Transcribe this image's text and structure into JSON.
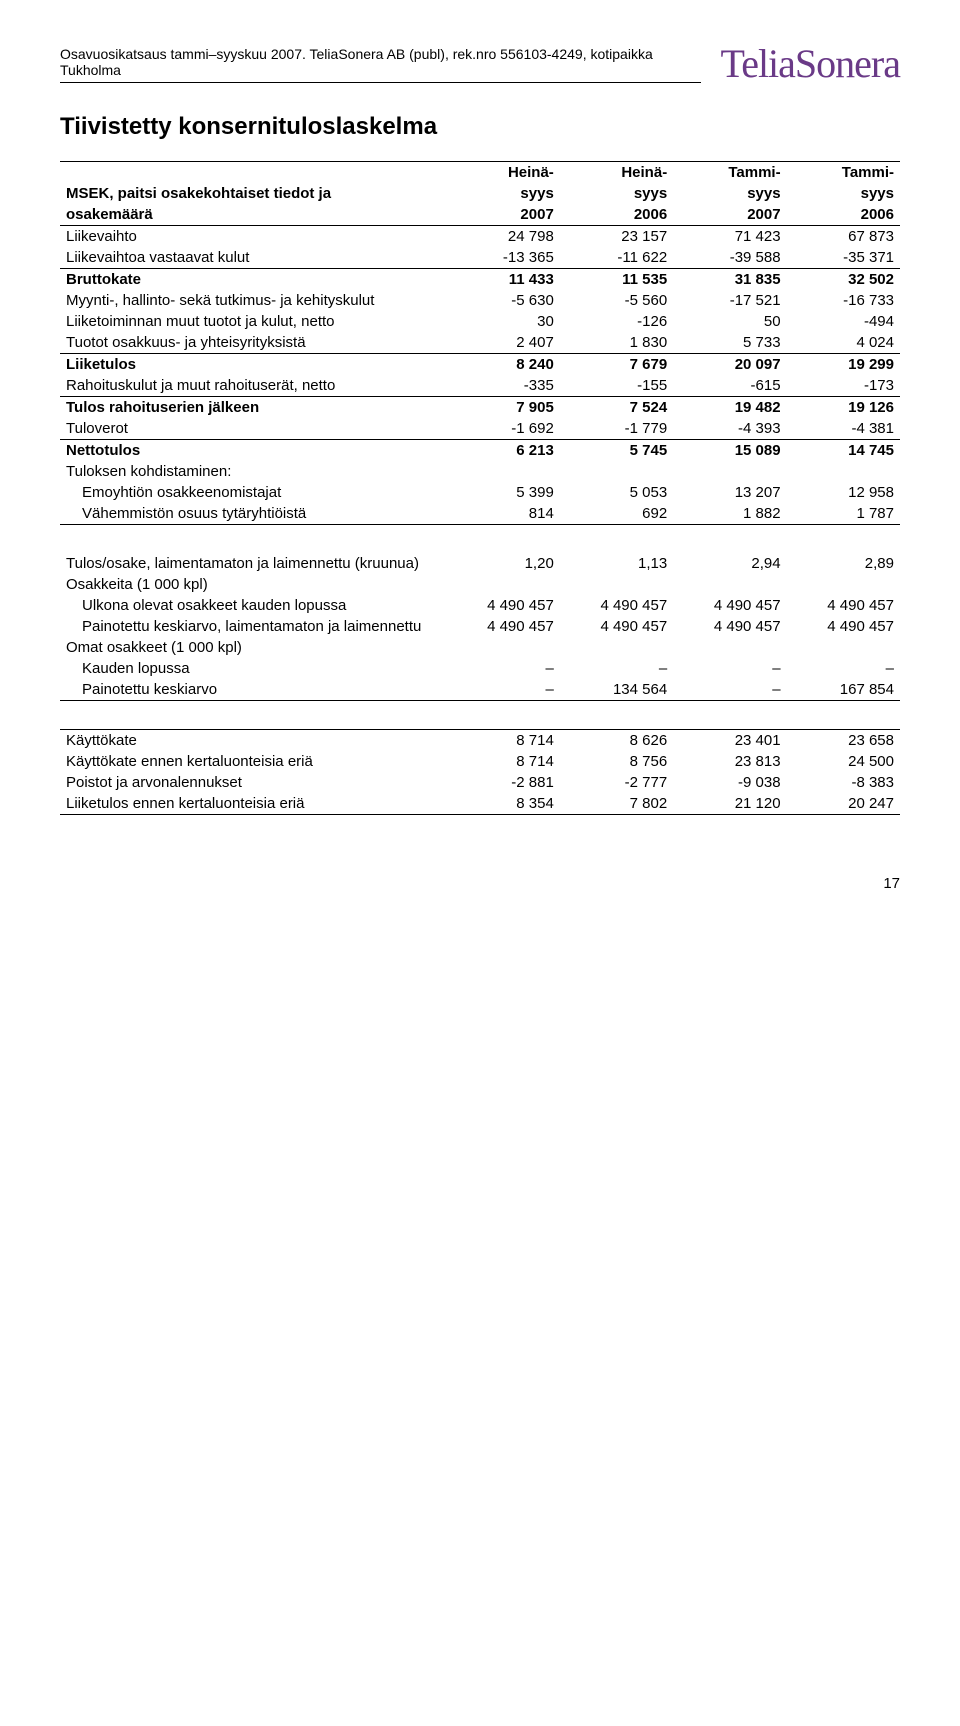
{
  "header": {
    "line": "Osavuosikatsaus tammi–syyskuu 2007. TeliaSonera AB (publ), rek.nro 556103-4249, kotipaikka Tukholma",
    "logo": "TeliaSonera",
    "logo_color": "#6a3a87"
  },
  "title": "Tiivistetty konsernituloslaskelma",
  "headers": {
    "r1c1": "",
    "r1c2": "Heinä-",
    "r1c3": "Heinä-",
    "r1c4": "Tammi-",
    "r1c5": "Tammi-",
    "r2c1": "MSEK, paitsi osakekohtaiset tiedot ja",
    "r2c2": "syys",
    "r2c3": "syys",
    "r2c4": "syys",
    "r2c5": "syys",
    "r3c1": "osakemäärä",
    "r3c2": "2007",
    "r3c3": "2006",
    "r3c4": "2007",
    "r3c5": "2006"
  },
  "rows": [
    {
      "label": "Liikevaihto",
      "c1": "24 798",
      "c2": "23 157",
      "c3": "71 423",
      "c4": "67 873",
      "bold": false,
      "indent": false
    },
    {
      "label": "Liikevaihtoa vastaavat kulut",
      "c1": "-13 365",
      "c2": "-11 622",
      "c3": "-39 588",
      "c4": "-35 371",
      "bold": false,
      "indent": false,
      "bottomBorder": true
    },
    {
      "label": "Bruttokate",
      "c1": "11 433",
      "c2": "11 535",
      "c3": "31 835",
      "c4": "32 502",
      "bold": true,
      "indent": false
    },
    {
      "label": "Myynti-, hallinto- sekä tutkimus- ja kehityskulut",
      "c1": "-5 630",
      "c2": "-5 560",
      "c3": "-17 521",
      "c4": "-16 733",
      "bold": false,
      "indent": false
    },
    {
      "label": "Liiketoiminnan muut tuotot ja kulut, netto",
      "c1": "30",
      "c2": "-126",
      "c3": "50",
      "c4": "-494",
      "bold": false,
      "indent": false
    },
    {
      "label": "Tuotot osakkuus- ja yhteisyrityksistä",
      "c1": "2 407",
      "c2": "1 830",
      "c3": "5 733",
      "c4": "4 024",
      "bold": false,
      "indent": false,
      "bottomBorder": true
    },
    {
      "label": "Liiketulos",
      "c1": "8 240",
      "c2": "7 679",
      "c3": "20 097",
      "c4": "19 299",
      "bold": true,
      "indent": false
    },
    {
      "label": "Rahoituskulut ja muut rahoituserät, netto",
      "c1": "-335",
      "c2": "-155",
      "c3": "-615",
      "c4": "-173",
      "bold": false,
      "indent": false,
      "bottomBorder": true
    },
    {
      "label": "Tulos rahoituserien jälkeen",
      "c1": "7 905",
      "c2": "7 524",
      "c3": "19 482",
      "c4": "19 126",
      "bold": true,
      "indent": false
    },
    {
      "label": "Tuloverot",
      "c1": "-1 692",
      "c2": "-1 779",
      "c3": "-4 393",
      "c4": "-4 381",
      "bold": false,
      "indent": false,
      "bottomBorder": true
    },
    {
      "label": "Nettotulos",
      "c1": "6 213",
      "c2": "5 745",
      "c3": "15 089",
      "c4": "14 745",
      "bold": true,
      "indent": false
    },
    {
      "label": "Tuloksen kohdistaminen:",
      "c1": "",
      "c2": "",
      "c3": "",
      "c4": "",
      "bold": false,
      "indent": false
    },
    {
      "label": "Emoyhtiön osakkeenomistajat",
      "c1": "5 399",
      "c2": "5 053",
      "c3": "13 207",
      "c4": "12 958",
      "bold": false,
      "indent": true
    },
    {
      "label": "Vähemmistön osuus tytäryhtiöistä",
      "c1": "814",
      "c2": "692",
      "c3": "1 882",
      "c4": "1 787",
      "bold": false,
      "indent": true,
      "bottomBorder": true
    }
  ],
  "share_rows": [
    {
      "label": "Tulos/osake, laimentamaton ja laimennettu (kruunua)",
      "c1": "1,20",
      "c2": "1,13",
      "c3": "2,94",
      "c4": "2,89",
      "bold": false,
      "indent": false
    },
    {
      "label": "Osakkeita (1 000 kpl)",
      "c1": "",
      "c2": "",
      "c3": "",
      "c4": "",
      "bold": false,
      "indent": false
    },
    {
      "label": "Ulkona olevat osakkeet kauden lopussa",
      "c1": "4 490 457",
      "c2": "4 490 457",
      "c3": "4 490 457",
      "c4": "4 490 457",
      "bold": false,
      "indent": true
    },
    {
      "label": "Painotettu keskiarvo, laimentamaton ja laimennettu",
      "c1": "4 490 457",
      "c2": "4 490 457",
      "c3": "4 490 457",
      "c4": "4 490 457",
      "bold": false,
      "indent": true
    },
    {
      "label": "Omat osakkeet (1 000 kpl)",
      "c1": "",
      "c2": "",
      "c3": "",
      "c4": "",
      "bold": false,
      "indent": false
    },
    {
      "label": "Kauden lopussa",
      "c1": "–",
      "c2": "–",
      "c3": "–",
      "c4": "–",
      "bold": false,
      "indent": true
    },
    {
      "label": "Painotettu keskiarvo",
      "c1": "–",
      "c2": "134 564",
      "c3": "–",
      "c4": "167 854",
      "bold": false,
      "indent": true,
      "bottomBorder": true
    }
  ],
  "footer_rows": [
    {
      "label": "Käyttökate",
      "c1": "8 714",
      "c2": "8 626",
      "c3": "23 401",
      "c4": "23 658",
      "bold": false,
      "indent": false
    },
    {
      "label": "Käyttökate ennen kertaluonteisia eriä",
      "c1": "8 714",
      "c2": "8 756",
      "c3": "23 813",
      "c4": "24 500",
      "bold": false,
      "indent": false
    },
    {
      "label": "Poistot ja arvonalennukset",
      "c1": "-2 881",
      "c2": "-2 777",
      "c3": "-9 038",
      "c4": "-8 383",
      "bold": false,
      "indent": false
    },
    {
      "label": "Liiketulos ennen kertaluonteisia eriä",
      "c1": "8 354",
      "c2": "7 802",
      "c3": "21 120",
      "c4": "20 247",
      "bold": false,
      "indent": false,
      "bottomBorder": true
    }
  ],
  "page_number": "17"
}
